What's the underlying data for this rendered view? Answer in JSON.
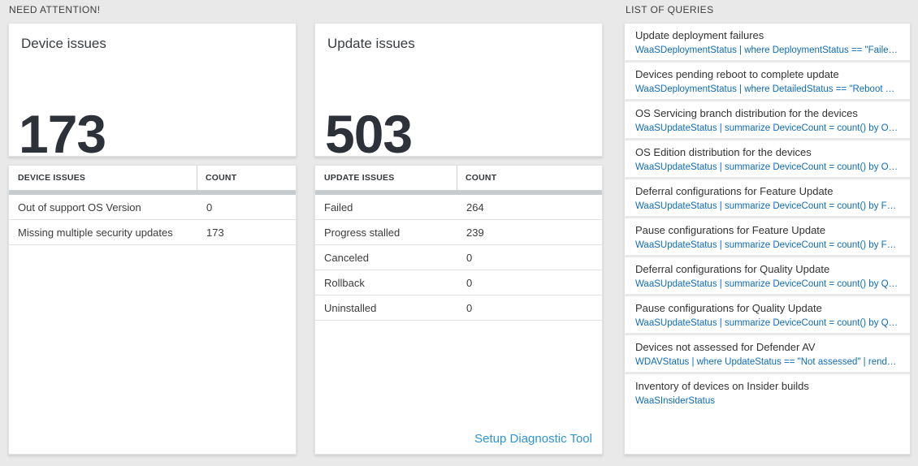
{
  "colors": {
    "page_background": "#e9e9e9",
    "card_background": "#ffffff",
    "big_number_color": "#2c313a",
    "query_text_blue": "#0f6cb8",
    "action_link_blue": "#2e95d8",
    "table_header_bar": "#c6cbd0"
  },
  "need_attention": {
    "section_title": "NEED ATTENTION!",
    "tiles": [
      {
        "title": "Device issues",
        "big_number": "173",
        "table": {
          "headers": [
            "DEVICE ISSUES",
            "COUNT"
          ],
          "rows": [
            {
              "name": "Out of support OS Version",
              "count": "0"
            },
            {
              "name": "Missing multiple security updates",
              "count": "173"
            }
          ]
        }
      },
      {
        "title": "Update issues",
        "big_number": "503",
        "table": {
          "headers": [
            "UPDATE ISSUES",
            "COUNT"
          ],
          "rows": [
            {
              "name": "Failed",
              "count": "264"
            },
            {
              "name": "Progress stalled",
              "count": "239"
            },
            {
              "name": "Canceled",
              "count": "0"
            },
            {
              "name": "Rollback",
              "count": "0"
            },
            {
              "name": "Uninstalled",
              "count": "0"
            }
          ]
        },
        "footer_link": "Setup Diagnostic Tool"
      }
    ]
  },
  "queries": {
    "section_title": "LIST OF QUERIES",
    "items": [
      {
        "title": "Update deployment failures",
        "query": "WaaSDeploymentStatus | where DeploymentStatus == \"Failed\" |..."
      },
      {
        "title": "Devices pending reboot to complete update",
        "query": "WaaSDeploymentStatus | where DetailedStatus == \"Reboot pend..."
      },
      {
        "title": "OS Servicing branch distribution for the devices",
        "query": "WaaSUpdateStatus | summarize DeviceCount = count() by OSSer..."
      },
      {
        "title": "OS Edition distribution for the devices",
        "query": "WaaSUpdateStatus | summarize DeviceCount = count() by OSEdit..."
      },
      {
        "title": "Deferral configurations for Feature Update",
        "query": "WaaSUpdateStatus | summarize DeviceCount = count() by Featur..."
      },
      {
        "title": "Pause configurations for Feature Update",
        "query": "WaaSUpdateStatus | summarize DeviceCount = count() by Featur..."
      },
      {
        "title": "Deferral configurations for Quality Update",
        "query": "WaaSUpdateStatus | summarize DeviceCount = count() by Qualit..."
      },
      {
        "title": "Pause configurations for Quality Update",
        "query": "WaaSUpdateStatus | summarize DeviceCount = count() by Qualit..."
      },
      {
        "title": "Devices not assessed for Defender AV",
        "query": "WDAVStatus | where UpdateStatus == \"Not assessed\" | render ta..."
      },
      {
        "title": "Inventory of devices on Insider builds",
        "query": "WaaSInsiderStatus"
      }
    ]
  }
}
